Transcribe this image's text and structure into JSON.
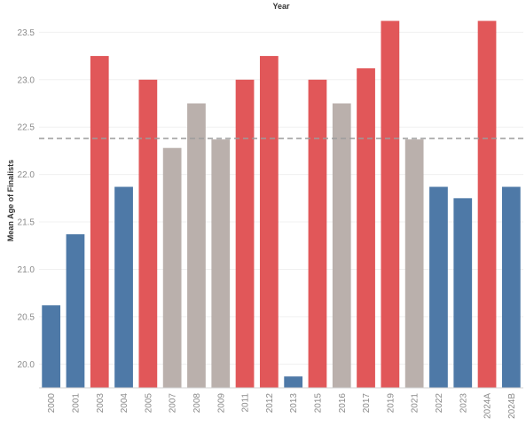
{
  "chart_data": {
    "type": "bar",
    "title": "Year",
    "xlabel": "",
    "ylabel": "Mean Age of Finalists",
    "ylim": [
      19.75,
      23.7
    ],
    "yticks": [
      20.0,
      20.5,
      21.0,
      21.5,
      22.0,
      22.5,
      23.0,
      23.5
    ],
    "grid": true,
    "reference_line": 22.38,
    "categories": [
      "2000",
      "2001",
      "2003",
      "2004",
      "2005",
      "2007",
      "2008",
      "2009",
      "2011",
      "2012",
      "2013",
      "2015",
      "2016",
      "2017",
      "2019",
      "2021",
      "2022",
      "2023",
      "2024A",
      "2024B"
    ],
    "values": [
      20.62,
      21.37,
      23.25,
      21.87,
      23.0,
      22.28,
      22.75,
      22.37,
      23.0,
      23.25,
      19.87,
      23.0,
      22.75,
      23.12,
      23.62,
      22.37,
      21.87,
      21.75,
      23.62,
      21.87
    ],
    "colors": [
      "#4e79a7",
      "#4e79a7",
      "#e15759",
      "#4e79a7",
      "#e15759",
      "#bab0ac",
      "#bab0ac",
      "#bab0ac",
      "#e15759",
      "#e15759",
      "#4e79a7",
      "#e15759",
      "#bab0ac",
      "#e15759",
      "#e15759",
      "#bab0ac",
      "#4e79a7",
      "#4e79a7",
      "#e15759",
      "#4e79a7"
    ]
  }
}
